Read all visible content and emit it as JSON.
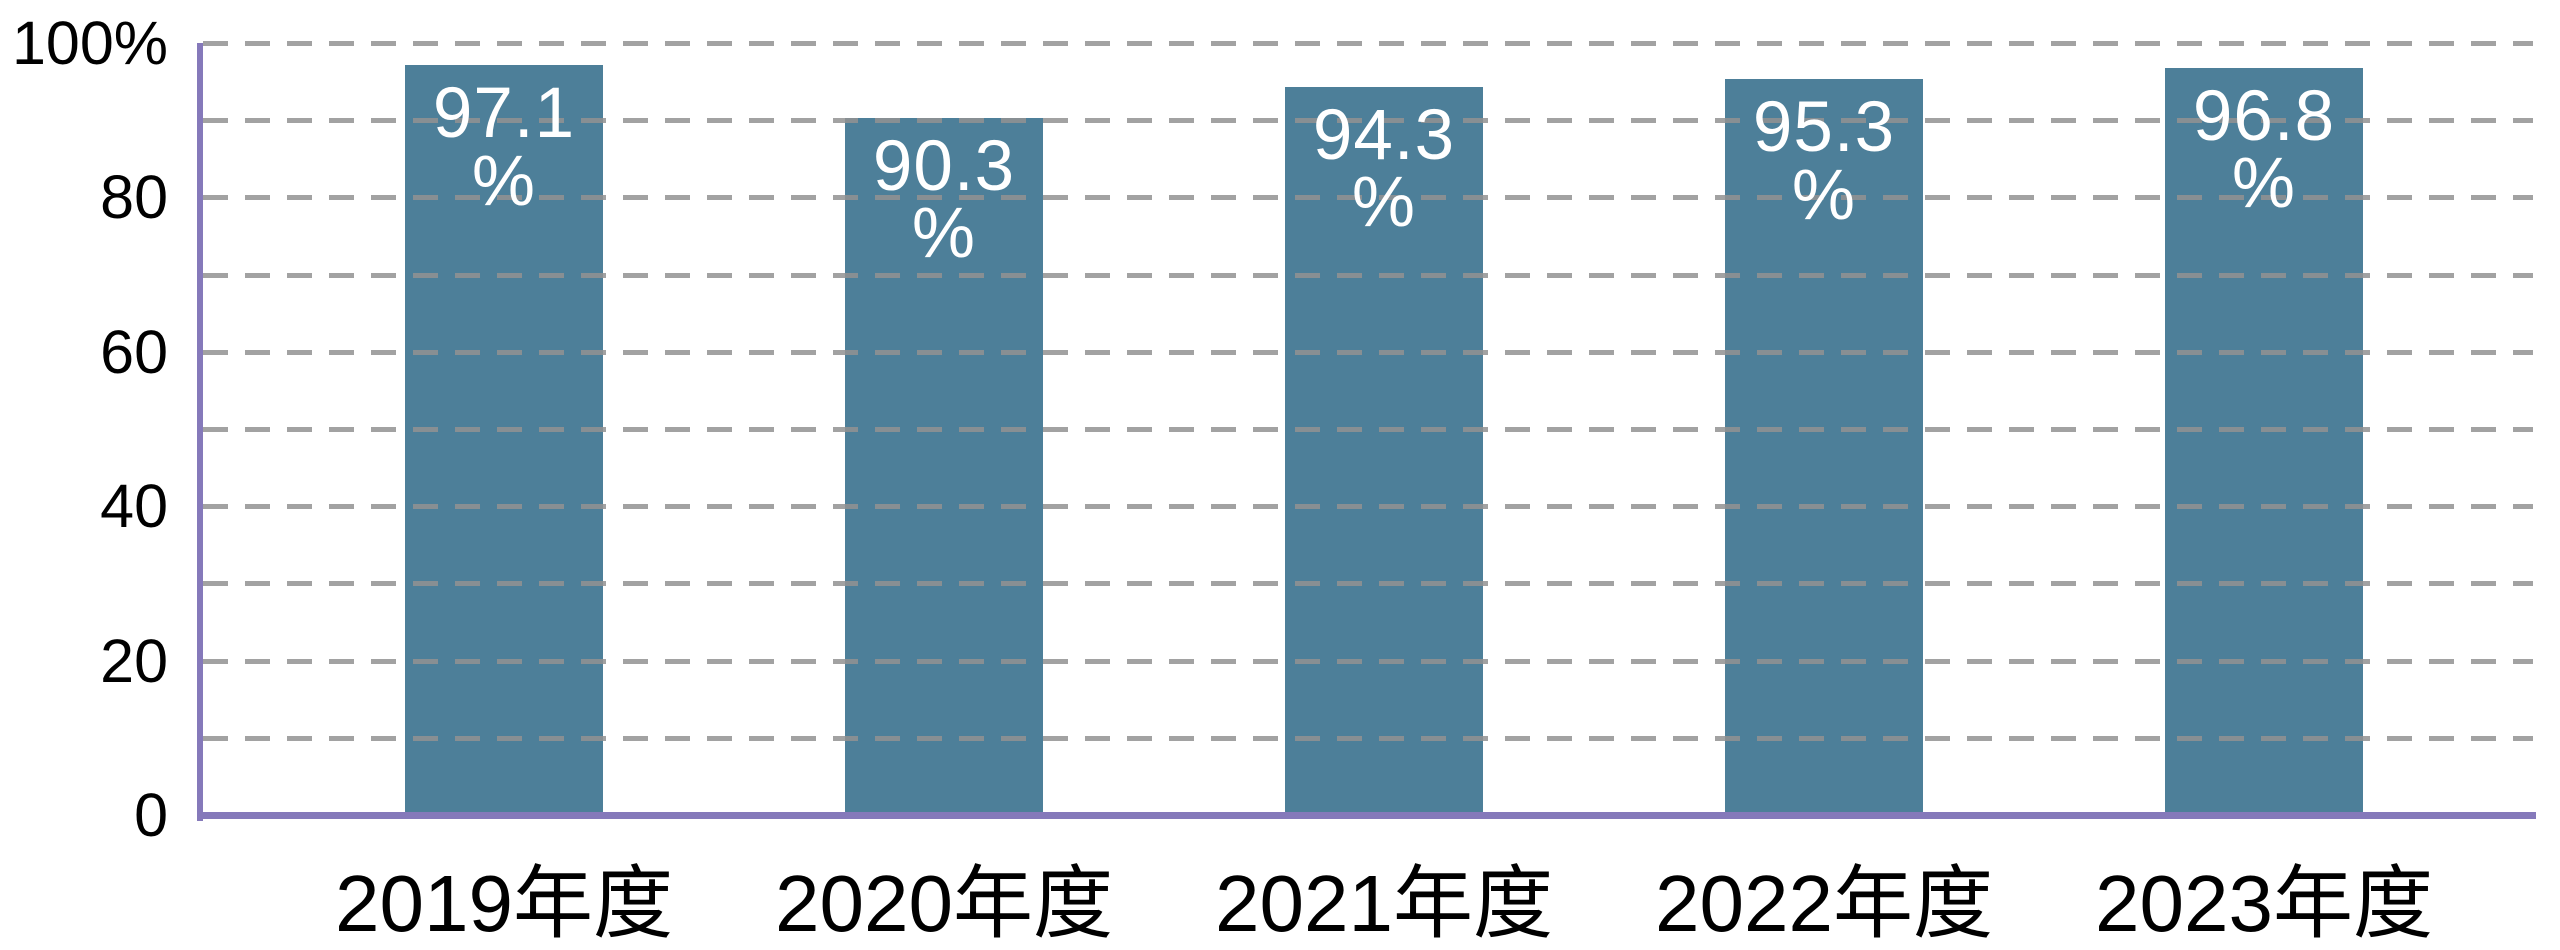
{
  "chart_data": {
    "type": "bar",
    "title": "",
    "categories": [
      "2019年度",
      "2020年度",
      "2021年度",
      "2022年度",
      "2023年度"
    ],
    "values": [
      97.1,
      90.3,
      94.3,
      95.3,
      96.8
    ],
    "value_suffix": "%",
    "bar_label_style": "value on first line, percent sign on second line, white text inside top of bar",
    "ylim": [
      0,
      100
    ],
    "grid_interval": 10,
    "label_interval": 20,
    "ytick_labels": [
      "0",
      "20",
      "40",
      "60",
      "80",
      "100%"
    ],
    "grid": "dashed horizontal lines drawn over bars",
    "legend": "none",
    "colors": {
      "bar": "#4d7f99",
      "bar_label_text": "#ffffff",
      "axis": "#8579ba",
      "gridline": "#929292",
      "tick_text": "#000000",
      "background": "#ffffff"
    }
  }
}
